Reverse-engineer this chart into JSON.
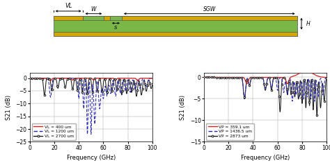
{
  "diagram": {
    "green_color": "#7ab648",
    "gold_color": "#d4a800",
    "outline_color": "#555555"
  },
  "plot1": {
    "xlabel": "Frequency (GHz)",
    "ylabel": "S21 (dB)",
    "xlim": [
      0,
      100
    ],
    "ylim": [
      -25,
      2
    ],
    "yticks": [
      0,
      -5,
      -10,
      -15,
      -20,
      -25
    ],
    "xticks": [
      0,
      20,
      40,
      60,
      80,
      100
    ],
    "legend": [
      "VL = 400 um",
      "VL = 1200 um",
      "VL = 2700 um"
    ]
  },
  "plot2": {
    "xlabel": "Frequency (GHz)",
    "ylabel": "S21 (dB)",
    "xlim": [
      0,
      100
    ],
    "ylim": [
      -15,
      1
    ],
    "yticks": [
      0,
      -5,
      -10,
      -15
    ],
    "xticks": [
      0,
      20,
      40,
      60,
      80,
      100
    ],
    "legend": [
      "VP = 359.1 um",
      "VP = 1436.5 um",
      "VP = 2873 um"
    ]
  }
}
